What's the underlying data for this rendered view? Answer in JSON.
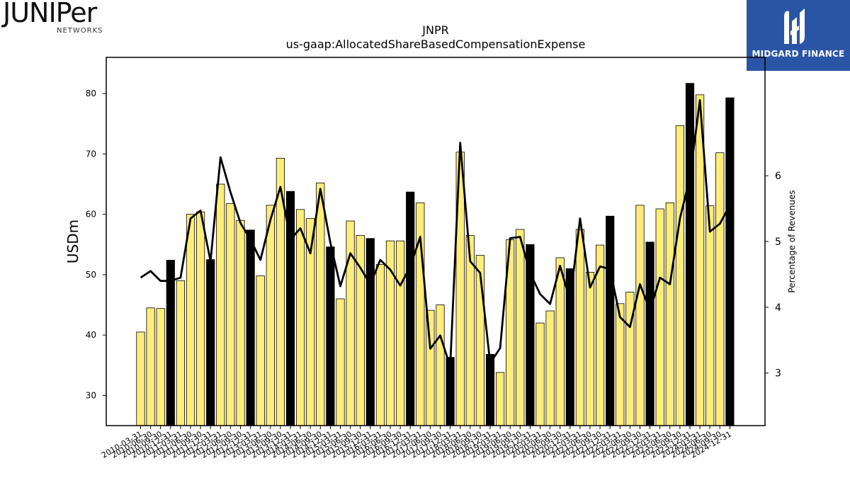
{
  "branding": {
    "left_logo_word": "JUNIPer",
    "left_logo_sub": "NETWORKS",
    "right_logo_text": "MIDGARD FINANCE"
  },
  "chart_data": {
    "type": "bar",
    "title": "JNPR",
    "subtitle": "us-gaap:AllocatedShareBasedCompensationExpense",
    "ylabel": "USDm",
    "y2label": "Percentage of Revenues",
    "ylim": [
      25,
      86
    ],
    "y2lim": [
      2.2,
      7.8
    ],
    "yticks": [
      30,
      40,
      50,
      60,
      70,
      80
    ],
    "y2ticks": [
      3,
      4,
      5,
      6
    ],
    "bar_color": "#ffed7a",
    "highlight_color": "#000000",
    "line_color": "#000000",
    "categories": [
      "2010-03-31",
      "2010-06-30",
      "2010-09-30",
      "2010-12-31",
      "2011-03-31",
      "2011-06-30",
      "2011-09-30",
      "2011-12-31",
      "2012-03-31",
      "2012-06-30",
      "2012-09-30",
      "2012-12-31",
      "2013-03-31",
      "2013-06-30",
      "2013-09-30",
      "2013-12-31",
      "2014-03-31",
      "2014-06-30",
      "2014-09-30",
      "2014-12-31",
      "2015-03-31",
      "2015-06-30",
      "2015-09-30",
      "2015-12-31",
      "2016-03-31",
      "2016-06-30",
      "2016-09-30",
      "2016-12-31",
      "2017-03-31",
      "2017-06-30",
      "2017-09-30",
      "2017-12-31",
      "2018-03-31",
      "2018-06-30",
      "2018-09-30",
      "2018-12-31",
      "2019-03-31",
      "2019-06-30",
      "2019-09-30",
      "2019-12-31",
      "2020-03-31",
      "2020-06-30",
      "2020-09-30",
      "2020-12-31",
      "2021-03-31",
      "2021-06-30",
      "2021-09-30",
      "2021-12-31",
      "2022-03-31",
      "2022-06-30",
      "2022-09-30",
      "2022-12-31",
      "2023-03-31",
      "2023-06-30",
      "2023-09-30",
      "2023-12-31",
      "2024-03-31",
      "2024-06-30",
      "2024-09-30",
      "2024-12-31"
    ],
    "visible_tick_labels": [
      "2010-03-31",
      "2010-06-30",
      "2010-09-30",
      "2010-12-31",
      "2011-03-31",
      "2011-06-30",
      "2011-09-30",
      "2011-12-31",
      "2012-03-31",
      "2012-06-30",
      "2012-09-30",
      "2012-12-31",
      "2013-03-31",
      "2013-06-30",
      "2013-09-30",
      "2013-12-31",
      "2014-03-31",
      "2014-06-30",
      "2014-09-30",
      "2014-12-31",
      "2015-03-31",
      "2015-06-30",
      "2015-09-30",
      "2015-12-31",
      "2016-03-31",
      "2016-06-30",
      "2016-09-30",
      "2016-12-31",
      "2017-03-31",
      "2017-06-30",
      "2017-09-30",
      "2017-12-31",
      "2018-03-31",
      "2018-06-30",
      "2018-09-30",
      "2018-12-31",
      "2019-03-31",
      "2019-06-30",
      "2019-09-30",
      "2019-12-31",
      "2020-03-31",
      "2020-06-30",
      "2020-09-30",
      "2020-12-31",
      "2021-03-31",
      "2021-06-30",
      "2021-09-30",
      "2021-12-31",
      "2022-03-31",
      "2022-06-30",
      "2022-09-30",
      "2022-12-31",
      "2023-03-31",
      "2023-06-30",
      "2023-09-30",
      "2023-12-31",
      "2024-03-31",
      "2024-06-30",
      "2024-09-30",
      "2024-12-31"
    ],
    "values": [
      40.5,
      44.5,
      44.4,
      52.4,
      49.0,
      60.0,
      60.4,
      52.5,
      65.0,
      61.8,
      59.0,
      57.4,
      49.8,
      61.5,
      69.3,
      63.8,
      60.8,
      59.3,
      65.2,
      54.6,
      46.0,
      58.9,
      56.5,
      56.0,
      51.7,
      55.6,
      55.6,
      63.7,
      61.9,
      44.1,
      45.0,
      36.3,
      70.3,
      56.5,
      53.2,
      36.8,
      33.8,
      55.8,
      57.5,
      55.0,
      42.0,
      44.0,
      52.8,
      51.0,
      57.5,
      50.4,
      54.9,
      59.7,
      45.2,
      47.1,
      61.5,
      55.4,
      60.9,
      61.9,
      74.7,
      81.7,
      79.8,
      61.4,
      70.2,
      79.3
    ],
    "highlight": [
      false,
      false,
      false,
      true,
      false,
      false,
      false,
      true,
      false,
      false,
      false,
      true,
      false,
      false,
      false,
      true,
      false,
      false,
      false,
      true,
      false,
      false,
      false,
      true,
      false,
      false,
      false,
      true,
      false,
      false,
      false,
      true,
      false,
      false,
      false,
      true,
      false,
      false,
      false,
      true,
      false,
      false,
      false,
      true,
      false,
      false,
      false,
      true,
      false,
      false,
      false,
      true,
      false,
      false,
      false,
      true,
      false,
      false,
      false,
      true
    ],
    "line_series": {
      "axis": "right",
      "values": [
        4.45,
        4.55,
        4.4,
        4.4,
        4.45,
        5.35,
        5.47,
        4.7,
        6.28,
        5.75,
        5.28,
        5.03,
        4.72,
        5.33,
        5.83,
        5.03,
        5.2,
        4.82,
        5.8,
        4.98,
        4.32,
        4.82,
        4.6,
        4.35,
        4.72,
        4.57,
        4.33,
        4.62,
        5.07,
        3.37,
        3.57,
        3.1,
        6.5,
        4.7,
        4.52,
        3.15,
        3.38,
        5.05,
        5.07,
        4.52,
        4.2,
        4.05,
        4.63,
        4.1,
        5.35,
        4.3,
        4.62,
        4.58,
        3.85,
        3.7,
        4.35,
        3.95,
        4.45,
        4.35,
        5.35,
        5.97,
        7.15,
        5.15,
        5.27,
        5.55
      ]
    }
  }
}
